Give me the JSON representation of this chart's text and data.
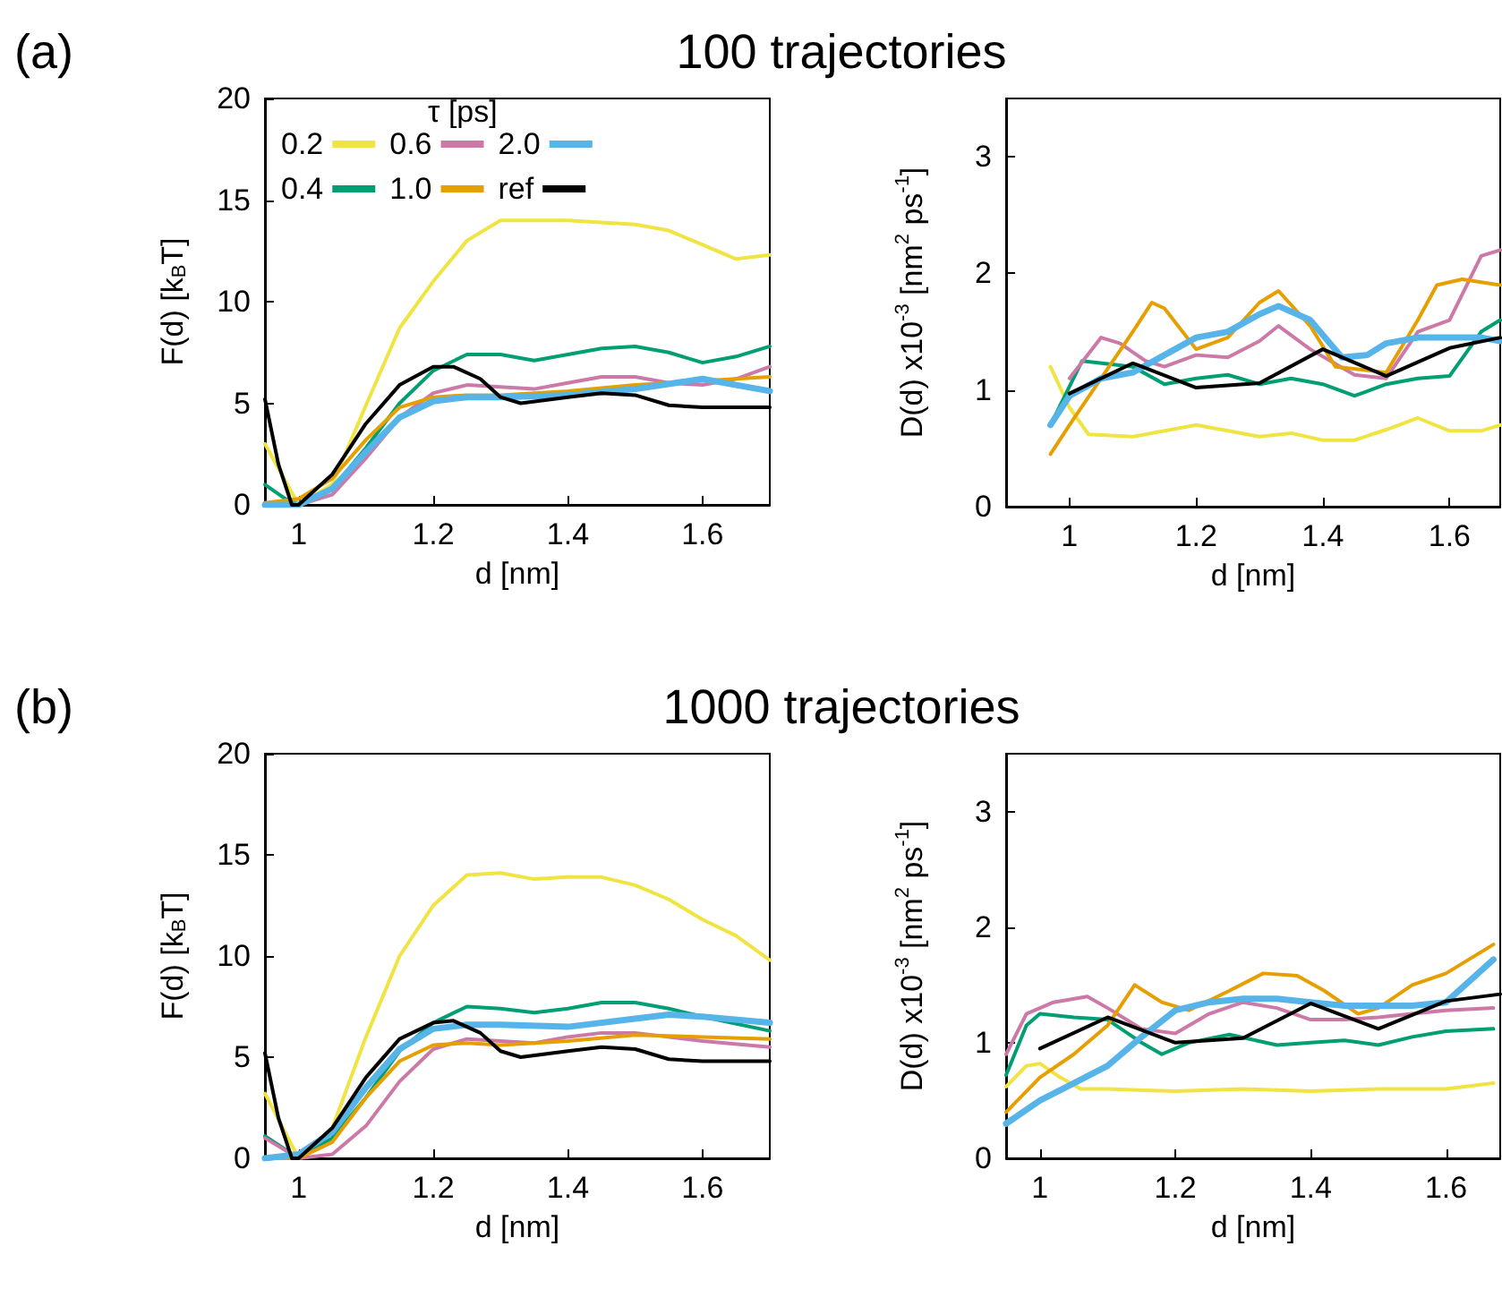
{
  "chart_data": [
    {
      "type": "line",
      "title": "100 trajectories",
      "annotations": [
        "(a)"
      ],
      "xlabel": "d [nm]",
      "ylabel": "F(d) [k$_{B}$T]",
      "legend_title": "τ [ps]",
      "legend": "top left",
      "grid": false,
      "xlim": [
        0.95,
        1.7
      ],
      "ylim": [
        0,
        20
      ],
      "xticks": [
        1,
        1.2,
        1.4,
        1.6
      ],
      "yticks": [
        0,
        5,
        10,
        15,
        20
      ],
      "series": [
        {
          "name": "0.2",
          "color": "#f0e442",
          "x": [
            0.95,
            1.0,
            1.05,
            1.1,
            1.15,
            1.2,
            1.25,
            1.3,
            1.4,
            1.5,
            1.55,
            1.6,
            1.65,
            1.7
          ],
          "values": [
            3,
            0,
            1,
            4.9,
            8.7,
            11,
            13,
            14,
            14,
            13.8,
            13.5,
            12.8,
            12.1,
            12.3
          ]
        },
        {
          "name": "0.4",
          "color": "#009e73",
          "x": [
            0.95,
            0.98,
            1.0,
            1.05,
            1.1,
            1.15,
            1.2,
            1.25,
            1.3,
            1.35,
            1.4,
            1.45,
            1.5,
            1.55,
            1.6,
            1.65,
            1.7
          ],
          "values": [
            1,
            0.3,
            0,
            0.8,
            2.8,
            5,
            6.6,
            7.4,
            7.4,
            7.1,
            7.4,
            7.7,
            7.8,
            7.5,
            7,
            7.3,
            7.8
          ]
        },
        {
          "name": "0.6",
          "color": "#cc79a7",
          "x": [
            0.95,
            1.0,
            1.05,
            1.1,
            1.15,
            1.2,
            1.25,
            1.3,
            1.35,
            1.4,
            1.45,
            1.5,
            1.55,
            1.6,
            1.65,
            1.7
          ],
          "values": [
            0.1,
            0,
            0.5,
            2.3,
            4.3,
            5.5,
            5.9,
            5.8,
            5.7,
            6,
            6.3,
            6.3,
            6,
            5.9,
            6.2,
            6.8
          ]
        },
        {
          "name": "1.0",
          "color": "#e69f00",
          "x": [
            0.95,
            1.0,
            1.05,
            1.1,
            1.15,
            1.2,
            1.25,
            1.3,
            1.4,
            1.5,
            1.6,
            1.7
          ],
          "values": [
            0.1,
            0.3,
            1.3,
            3.2,
            4.8,
            5.3,
            5.4,
            5.4,
            5.6,
            5.9,
            6.1,
            6.3
          ]
        },
        {
          "name": "2.0",
          "color": "#56b4e9",
          "x": [
            0.95,
            1.0,
            1.05,
            1.1,
            1.15,
            1.2,
            1.25,
            1.3,
            1.4,
            1.5,
            1.6,
            1.65,
            1.7
          ],
          "values": [
            0,
            0,
            0.8,
            2.6,
            4.3,
            5.1,
            5.3,
            5.3,
            5.4,
            5.7,
            6.2,
            5.9,
            5.6
          ]
        },
        {
          "name": "ref",
          "color": "#000000",
          "x": [
            0.95,
            0.97,
            0.99,
            1.0,
            1.05,
            1.1,
            1.15,
            1.2,
            1.23,
            1.27,
            1.3,
            1.33,
            1.4,
            1.45,
            1.5,
            1.55,
            1.6,
            1.7
          ],
          "values": [
            5.2,
            2,
            0,
            0,
            1.5,
            4,
            5.9,
            6.8,
            6.8,
            6.2,
            5.3,
            5,
            5.3,
            5.5,
            5.4,
            4.9,
            4.8,
            4.8
          ]
        }
      ]
    },
    {
      "type": "line",
      "ylabel": "D(d) x10$^{-3}$ [nm$^{2}$ ps$^{-1}$]",
      "xlabel": "d [nm]",
      "grid": false,
      "xlim": [
        0.9,
        1.68
      ],
      "ylim": [
        0,
        3.5
      ],
      "xticks": [
        1,
        1.2,
        1.4,
        1.6
      ],
      "yticks": [
        0,
        1,
        2,
        3
      ],
      "series": [
        {
          "color": "#f0e442",
          "x": [
            0.97,
            1.0,
            1.03,
            1.1,
            1.2,
            1.3,
            1.35,
            1.4,
            1.45,
            1.5,
            1.55,
            1.6,
            1.65,
            1.68
          ],
          "values": [
            1.2,
            0.85,
            0.62,
            0.6,
            0.7,
            0.6,
            0.63,
            0.57,
            0.57,
            0.66,
            0.76,
            0.65,
            0.65,
            0.7
          ]
        },
        {
          "color": "#009e73",
          "x": [
            0.97,
            1.02,
            1.1,
            1.15,
            1.2,
            1.25,
            1.3,
            1.35,
            1.4,
            1.45,
            1.5,
            1.55,
            1.6,
            1.65,
            1.68
          ],
          "values": [
            0.7,
            1.25,
            1.2,
            1.05,
            1.1,
            1.13,
            1.05,
            1.1,
            1.05,
            0.95,
            1.05,
            1.1,
            1.12,
            1.5,
            1.6
          ]
        },
        {
          "color": "#cc79a7",
          "x": [
            1.0,
            1.05,
            1.08,
            1.12,
            1.15,
            1.2,
            1.25,
            1.3,
            1.33,
            1.38,
            1.45,
            1.5,
            1.55,
            1.6,
            1.65,
            1.68
          ],
          "values": [
            1.1,
            1.45,
            1.4,
            1.25,
            1.2,
            1.3,
            1.28,
            1.42,
            1.55,
            1.35,
            1.13,
            1.1,
            1.5,
            1.6,
            2.15,
            2.2
          ]
        },
        {
          "color": "#e69f00",
          "x": [
            0.97,
            1.0,
            1.05,
            1.1,
            1.13,
            1.15,
            1.2,
            1.25,
            1.3,
            1.33,
            1.38,
            1.42,
            1.5,
            1.55,
            1.58,
            1.62,
            1.68
          ],
          "values": [
            0.45,
            0.7,
            1.1,
            1.5,
            1.75,
            1.7,
            1.35,
            1.45,
            1.75,
            1.85,
            1.55,
            1.2,
            1.15,
            1.6,
            1.9,
            1.95,
            1.9
          ]
        },
        {
          "color": "#56b4e9",
          "x": [
            0.97,
            1.0,
            1.05,
            1.1,
            1.15,
            1.2,
            1.25,
            1.3,
            1.33,
            1.38,
            1.43,
            1.47,
            1.5,
            1.55,
            1.6,
            1.65,
            1.68
          ],
          "values": [
            0.7,
            0.95,
            1.1,
            1.15,
            1.3,
            1.45,
            1.5,
            1.65,
            1.72,
            1.6,
            1.28,
            1.3,
            1.4,
            1.45,
            1.45,
            1.45,
            1.42
          ]
        },
        {
          "color": "#000000",
          "x": [
            1.0,
            1.1,
            1.2,
            1.3,
            1.4,
            1.5,
            1.6,
            1.68
          ],
          "values": [
            0.97,
            1.23,
            1.02,
            1.06,
            1.35,
            1.12,
            1.36,
            1.45
          ]
        }
      ]
    },
    {
      "type": "line",
      "title": "1000 trajectories",
      "annotations": [
        "(b)"
      ],
      "xlabel": "d [nm]",
      "ylabel": "F(d) [k$_{B}$T]",
      "grid": false,
      "xlim": [
        0.95,
        1.7
      ],
      "ylim": [
        0,
        20
      ],
      "xticks": [
        1,
        1.2,
        1.4,
        1.6
      ],
      "yticks": [
        0,
        5,
        10,
        15,
        20
      ],
      "series": [
        {
          "color": "#f0e442",
          "x": [
            0.95,
            1.0,
            1.05,
            1.1,
            1.15,
            1.2,
            1.25,
            1.3,
            1.35,
            1.4,
            1.45,
            1.5,
            1.55,
            1.6,
            1.65,
            1.7
          ],
          "values": [
            3.2,
            0,
            1.5,
            6,
            10,
            12.5,
            14,
            14.1,
            13.8,
            13.9,
            13.9,
            13.5,
            12.8,
            11.8,
            11,
            9.8
          ]
        },
        {
          "color": "#009e73",
          "x": [
            0.95,
            1.0,
            1.05,
            1.1,
            1.15,
            1.2,
            1.25,
            1.3,
            1.35,
            1.4,
            1.45,
            1.5,
            1.55,
            1.6,
            1.7
          ],
          "values": [
            1.1,
            0,
            1,
            3,
            5.3,
            6.7,
            7.5,
            7.4,
            7.2,
            7.4,
            7.7,
            7.7,
            7.4,
            7,
            6.3
          ]
        },
        {
          "color": "#cc79a7",
          "x": [
            0.95,
            1.0,
            1.05,
            1.1,
            1.15,
            1.2,
            1.25,
            1.3,
            1.35,
            1.4,
            1.45,
            1.5,
            1.6,
            1.7
          ],
          "values": [
            1,
            0,
            0.2,
            1.6,
            3.8,
            5.4,
            5.9,
            5.8,
            5.7,
            6,
            6.2,
            6.2,
            5.8,
            5.5
          ]
        },
        {
          "color": "#e69f00",
          "x": [
            0.95,
            1.0,
            1.05,
            1.1,
            1.15,
            1.2,
            1.25,
            1.3,
            1.4,
            1.5,
            1.6,
            1.7
          ],
          "values": [
            0,
            0,
            0.8,
            3,
            4.8,
            5.6,
            5.7,
            5.6,
            5.8,
            6.1,
            6,
            5.9
          ]
        },
        {
          "color": "#56b4e9",
          "x": [
            0.95,
            1.0,
            1.05,
            1.1,
            1.15,
            1.2,
            1.25,
            1.3,
            1.4,
            1.5,
            1.55,
            1.6,
            1.7
          ],
          "values": [
            0,
            0.2,
            1.3,
            3.5,
            5.4,
            6.4,
            6.6,
            6.6,
            6.5,
            6.9,
            7.1,
            7,
            6.7
          ]
        },
        {
          "color": "#000000",
          "x": [
            0.95,
            0.97,
            0.99,
            1.0,
            1.05,
            1.1,
            1.15,
            1.2,
            1.23,
            1.27,
            1.3,
            1.33,
            1.4,
            1.45,
            1.5,
            1.55,
            1.6,
            1.7
          ],
          "values": [
            5.2,
            2,
            0,
            0,
            1.5,
            4,
            5.9,
            6.7,
            6.8,
            6.2,
            5.3,
            5,
            5.3,
            5.5,
            5.4,
            4.9,
            4.8,
            4.8
          ]
        }
      ]
    },
    {
      "type": "line",
      "ylabel": "D(d) x10$^{-3}$ [nm$^{2}$ ps$^{-1}$]",
      "xlabel": "d [nm]",
      "grid": false,
      "xlim": [
        0.95,
        1.68
      ],
      "ylim": [
        0,
        3.5
      ],
      "xticks": [
        1,
        1.2,
        1.4,
        1.6
      ],
      "yticks": [
        0,
        1,
        2,
        3
      ],
      "series": [
        {
          "color": "#f0e442",
          "x": [
            0.95,
            0.98,
            1.0,
            1.03,
            1.06,
            1.1,
            1.2,
            1.3,
            1.4,
            1.5,
            1.6,
            1.67
          ],
          "values": [
            0.62,
            0.8,
            0.82,
            0.7,
            0.6,
            0.6,
            0.58,
            0.6,
            0.58,
            0.6,
            0.6,
            0.65
          ]
        },
        {
          "color": "#009e73",
          "x": [
            0.95,
            0.98,
            1.0,
            1.05,
            1.1,
            1.15,
            1.18,
            1.22,
            1.28,
            1.35,
            1.4,
            1.45,
            1.5,
            1.55,
            1.6,
            1.67
          ],
          "values": [
            0.72,
            1.15,
            1.25,
            1.22,
            1.2,
            1,
            0.9,
            1,
            1.07,
            0.98,
            1,
            1.02,
            0.98,
            1.05,
            1.1,
            1.12
          ]
        },
        {
          "color": "#cc79a7",
          "x": [
            0.95,
            0.98,
            1.02,
            1.07,
            1.1,
            1.15,
            1.2,
            1.25,
            1.3,
            1.35,
            1.4,
            1.45,
            1.5,
            1.55,
            1.6,
            1.67
          ],
          "values": [
            0.9,
            1.25,
            1.35,
            1.4,
            1.3,
            1.12,
            1.08,
            1.25,
            1.35,
            1.3,
            1.2,
            1.2,
            1.22,
            1.25,
            1.28,
            1.3
          ]
        },
        {
          "color": "#e69f00",
          "x": [
            0.95,
            1.0,
            1.05,
            1.1,
            1.14,
            1.18,
            1.22,
            1.28,
            1.33,
            1.38,
            1.42,
            1.47,
            1.5,
            1.55,
            1.6,
            1.67
          ],
          "values": [
            0.4,
            0.7,
            0.9,
            1.15,
            1.5,
            1.35,
            1.28,
            1.45,
            1.6,
            1.58,
            1.45,
            1.25,
            1.3,
            1.5,
            1.6,
            1.85
          ]
        },
        {
          "color": "#56b4e9",
          "x": [
            0.95,
            1.0,
            1.05,
            1.1,
            1.15,
            1.2,
            1.25,
            1.3,
            1.35,
            1.4,
            1.45,
            1.5,
            1.55,
            1.6,
            1.67
          ],
          "values": [
            0.3,
            0.5,
            0.65,
            0.8,
            1.05,
            1.28,
            1.35,
            1.38,
            1.38,
            1.35,
            1.32,
            1.32,
            1.32,
            1.35,
            1.72
          ]
        },
        {
          "color": "#000000",
          "x": [
            1.0,
            1.1,
            1.2,
            1.3,
            1.4,
            1.5,
            1.6,
            1.68
          ],
          "values": [
            0.95,
            1.22,
            1,
            1.04,
            1.34,
            1.12,
            1.36,
            1.42
          ]
        }
      ]
    }
  ]
}
